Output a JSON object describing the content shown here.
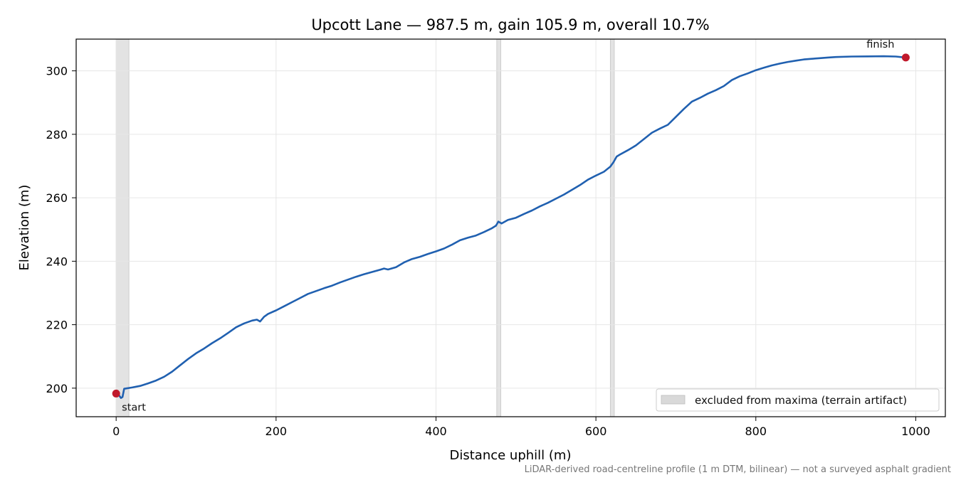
{
  "chart_data": {
    "type": "line",
    "title": "Upcott Lane — 987.5 m, gain 105.9 m, overall 10.7%",
    "xlabel": "Distance uphill (m)",
    "ylabel": "Elevation (m)",
    "xlim": [
      -50,
      1037
    ],
    "ylim": [
      191,
      310
    ],
    "xticks": [
      0,
      200,
      400,
      600,
      800,
      1000
    ],
    "yticks": [
      200,
      220,
      240,
      260,
      280,
      300
    ],
    "grid": true,
    "colors": {
      "line": "#2060b0",
      "marker": "#c0192b",
      "band": "#d9d9d9"
    },
    "series": [
      {
        "points": [
          [
            0,
            198.3
          ],
          [
            4,
            197.6
          ],
          [
            6,
            196.9
          ],
          [
            8,
            197.2
          ],
          [
            10,
            199.8
          ],
          [
            15,
            200.0
          ],
          [
            20,
            200.2
          ],
          [
            30,
            200.7
          ],
          [
            40,
            201.5
          ],
          [
            50,
            202.4
          ],
          [
            60,
            203.6
          ],
          [
            70,
            205.2
          ],
          [
            80,
            207.2
          ],
          [
            90,
            209.2
          ],
          [
            100,
            211.0
          ],
          [
            110,
            212.5
          ],
          [
            120,
            214.2
          ],
          [
            130,
            215.7
          ],
          [
            140,
            217.4
          ],
          [
            150,
            219.2
          ],
          [
            160,
            220.4
          ],
          [
            170,
            221.3
          ],
          [
            176,
            221.6
          ],
          [
            180,
            221.0
          ],
          [
            185,
            222.5
          ],
          [
            190,
            223.4
          ],
          [
            200,
            224.5
          ],
          [
            210,
            225.8
          ],
          [
            220,
            227.1
          ],
          [
            230,
            228.4
          ],
          [
            240,
            229.7
          ],
          [
            250,
            230.6
          ],
          [
            260,
            231.5
          ],
          [
            270,
            232.3
          ],
          [
            280,
            233.3
          ],
          [
            290,
            234.2
          ],
          [
            300,
            235.1
          ],
          [
            310,
            235.9
          ],
          [
            320,
            236.6
          ],
          [
            330,
            237.3
          ],
          [
            335,
            237.7
          ],
          [
            340,
            237.4
          ],
          [
            350,
            238.1
          ],
          [
            360,
            239.6
          ],
          [
            370,
            240.7
          ],
          [
            380,
            241.4
          ],
          [
            390,
            242.3
          ],
          [
            400,
            243.1
          ],
          [
            410,
            244.0
          ],
          [
            420,
            245.2
          ],
          [
            430,
            246.6
          ],
          [
            440,
            247.4
          ],
          [
            450,
            248.1
          ],
          [
            460,
            249.2
          ],
          [
            470,
            250.4
          ],
          [
            475,
            251.2
          ],
          [
            478,
            252.5
          ],
          [
            482,
            251.9
          ],
          [
            490,
            253.0
          ],
          [
            500,
            253.7
          ],
          [
            510,
            254.9
          ],
          [
            520,
            256.0
          ],
          [
            530,
            257.3
          ],
          [
            540,
            258.4
          ],
          [
            550,
            259.7
          ],
          [
            560,
            261.0
          ],
          [
            570,
            262.5
          ],
          [
            580,
            264.0
          ],
          [
            590,
            265.7
          ],
          [
            600,
            267.0
          ],
          [
            610,
            268.2
          ],
          [
            618,
            269.8
          ],
          [
            622,
            271.2
          ],
          [
            626,
            273.0
          ],
          [
            630,
            273.6
          ],
          [
            640,
            275.0
          ],
          [
            650,
            276.5
          ],
          [
            660,
            278.5
          ],
          [
            670,
            280.5
          ],
          [
            680,
            281.8
          ],
          [
            690,
            283.0
          ],
          [
            700,
            285.5
          ],
          [
            710,
            288.0
          ],
          [
            720,
            290.3
          ],
          [
            730,
            291.5
          ],
          [
            740,
            292.8
          ],
          [
            750,
            293.9
          ],
          [
            760,
            295.2
          ],
          [
            770,
            297.1
          ],
          [
            780,
            298.3
          ],
          [
            790,
            299.2
          ],
          [
            800,
            300.2
          ],
          [
            810,
            301.0
          ],
          [
            820,
            301.7
          ],
          [
            830,
            302.3
          ],
          [
            840,
            302.8
          ],
          [
            850,
            303.2
          ],
          [
            860,
            303.6
          ],
          [
            870,
            303.8
          ],
          [
            880,
            304.0
          ],
          [
            890,
            304.2
          ],
          [
            900,
            304.35
          ],
          [
            920,
            304.5
          ],
          [
            940,
            304.55
          ],
          [
            960,
            304.6
          ],
          [
            975,
            304.5
          ],
          [
            987.5,
            304.2
          ]
        ]
      }
    ],
    "excluded_bands": [
      [
        0,
        16
      ],
      [
        476,
        481
      ],
      [
        618,
        623
      ]
    ],
    "markers": [
      {
        "x": 0,
        "y": 198.3,
        "label": "start"
      },
      {
        "x": 987.5,
        "y": 304.2,
        "label": "finish"
      }
    ],
    "legend": {
      "position": "bottom-right",
      "label": "excluded from maxima (terrain artifact)"
    },
    "footnote": "LiDAR-derived road-centreline profile (1 m DTM, bilinear) — not a surveyed asphalt gradient"
  }
}
